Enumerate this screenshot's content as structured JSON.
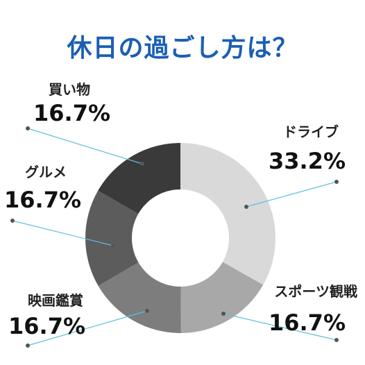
{
  "chart_data": {
    "type": "pie",
    "title": "休日の過ごし方は？",
    "donut": true,
    "start_angle_deg": 0,
    "direction": "clockwise",
    "unit": "%",
    "slices": [
      {
        "label": "ドライブ",
        "value": 33.2,
        "display": "33.2%",
        "color": "#d9d9d9"
      },
      {
        "label": "スポーツ観戦",
        "value": 16.7,
        "display": "16.7%",
        "color": "#a8a8a8"
      },
      {
        "label": "映画鑑賞",
        "value": 16.7,
        "display": "16.7%",
        "color": "#7d7d7d"
      },
      {
        "label": "グルメ",
        "value": 16.7,
        "display": "16.7%",
        "color": "#5c5c5c"
      },
      {
        "label": "買い物",
        "value": 16.7,
        "display": "16.7%",
        "color": "#3a3a3a"
      }
    ],
    "leader_line_color": "#5bc0de",
    "title_color": "#1a5fb4"
  }
}
